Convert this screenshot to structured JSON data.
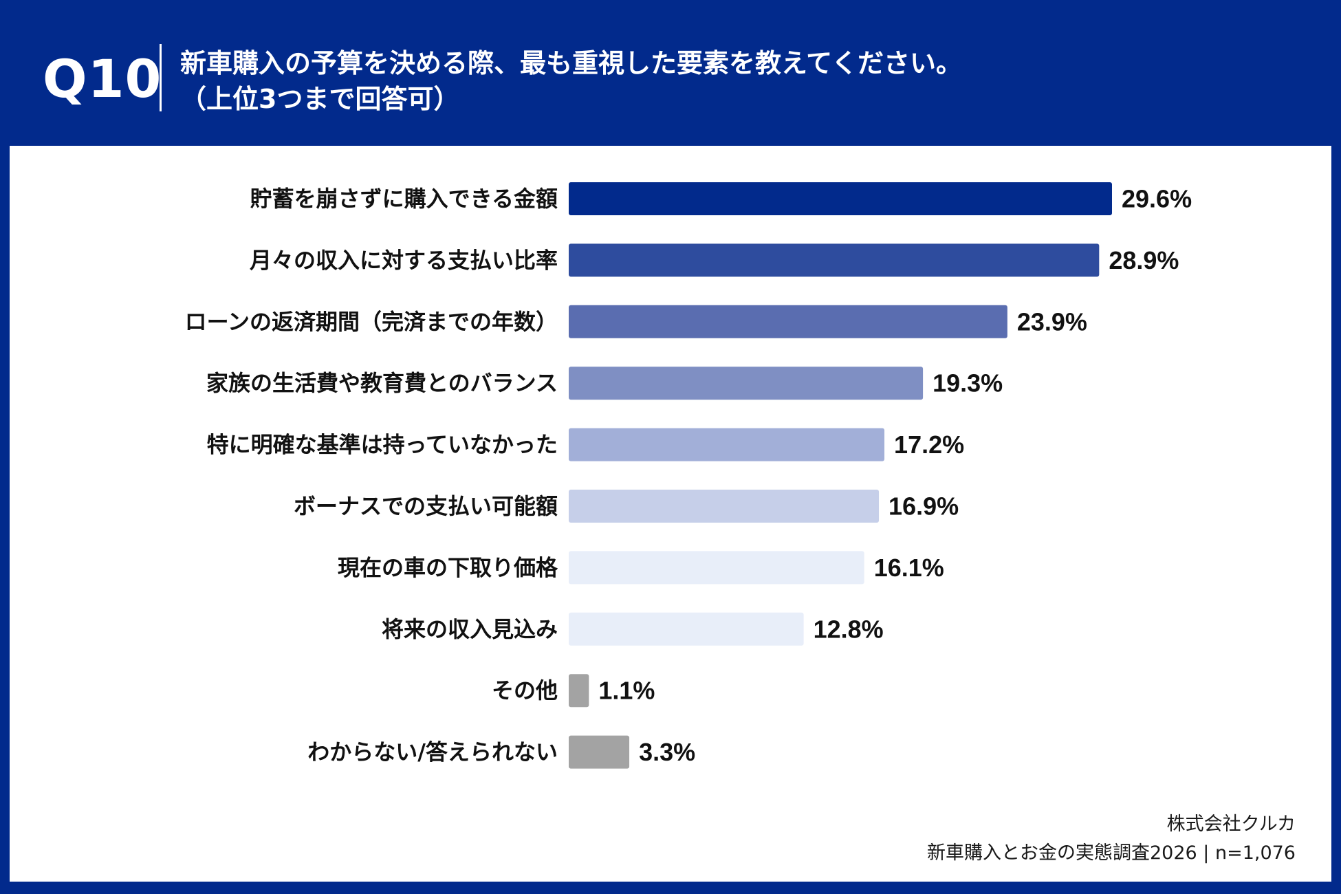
{
  "header": {
    "question_number": "Q10",
    "title_line1": "新車購入の予算を決める際、最も重視した要素を教えてください。",
    "title_line2": "（上位3つまで回答可）"
  },
  "footer": {
    "company": "株式会社クルカ",
    "survey": "新車購入とお金の実態調査2026 | n=1,076"
  },
  "chart_data": {
    "type": "bar",
    "orientation": "horizontal",
    "unit": "%",
    "xlim": [
      0,
      29.6
    ],
    "categories": [
      "貯蓄を崩さずに購入できる金額",
      "月々の収入に対する支払い比率",
      "ローンの返済期間（完済までの年数）",
      "家族の生活費や教育費とのバランス",
      "特に明確な基準は持っていなかった",
      "ボーナスでの支払い可能額",
      "現在の車の下取り価格",
      "将来の収入見込み",
      "その他",
      "わからない/答えられない"
    ],
    "values": [
      29.6,
      28.9,
      23.9,
      19.3,
      17.2,
      16.9,
      16.1,
      12.8,
      1.1,
      3.3
    ],
    "labels": [
      "29.6%",
      "28.9%",
      "23.9%",
      "19.3%",
      "17.2%",
      "16.9%",
      "16.1%",
      "12.8%",
      "1.1%",
      "3.3%"
    ],
    "colors": [
      "#022a8c",
      "#2e4c9e",
      "#5a6db0",
      "#7f8fc3",
      "#a2afd8",
      "#c6cfe9",
      "#e8eef9",
      "#e8eef9",
      "#a3a3a3",
      "#a3a3a3"
    ]
  }
}
